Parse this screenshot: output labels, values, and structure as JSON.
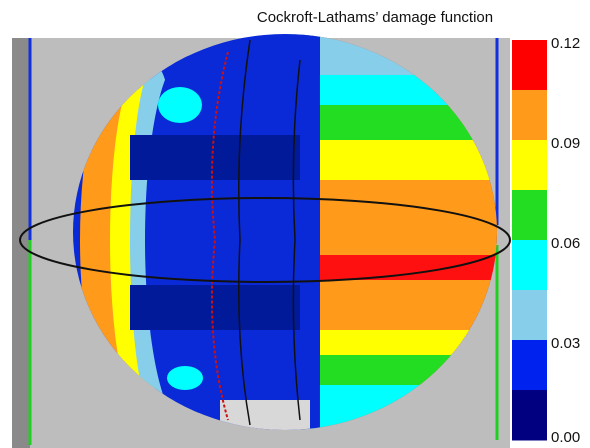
{
  "title": "Cockroft-Lathams’ damage function",
  "colorbar": {
    "colors": [
      "#ff0000",
      "#ff9a1a",
      "#ffff00",
      "#22dd22",
      "#00ffff",
      "#87ceeb",
      "#0022ee",
      "#000080"
    ],
    "labels": [
      "0.12",
      "0.09",
      "0.06",
      "0.03",
      "0.00"
    ]
  }
}
